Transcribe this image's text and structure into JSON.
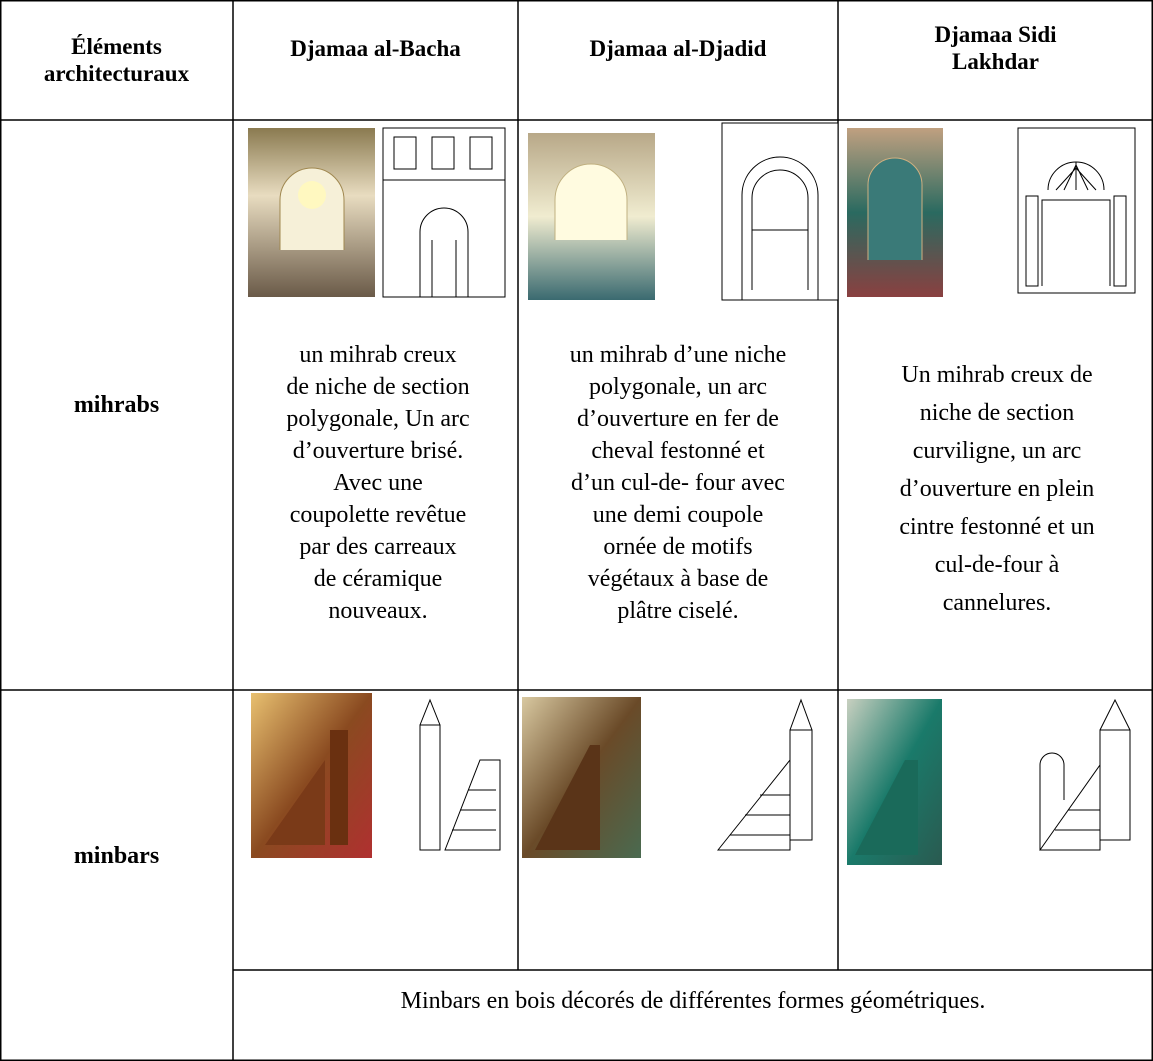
{
  "table": {
    "header": [
      [
        "Éléments",
        "architecturaux"
      ],
      [
        "Djamaa al-Bacha"
      ],
      [
        "Djamaa al-Djadid"
      ],
      [
        "Djamaa Sidi",
        "Lakhdar"
      ]
    ],
    "rows": [
      {
        "label": "mihrabs",
        "cells": [
          [
            "un mihrab creux",
            "de niche de section",
            "polygonale, Un arc",
            "d’ouverture brisé.",
            "Avec une",
            "coupolette revêtue",
            "par des carreaux",
            "de céramique",
            "nouveaux."
          ],
          [
            "un mihrab d’une niche",
            "polygonale, un arc",
            "d’ouverture en fer de",
            "cheval festonné et",
            "d’un cul-de- four avec",
            "une demi coupole",
            "ornée de motifs",
            "végétaux à base de",
            "plâtre ciselé."
          ],
          [
            "Un mihrab creux de",
            "niche de section",
            "curviligne, un arc",
            "d’ouverture en plein",
            "cintre festonné et un",
            "cul-de-four à",
            "cannelures."
          ]
        ]
      },
      {
        "label": "minbars",
        "note": "Minbars en bois décorés de différentes formes géométriques."
      }
    ]
  }
}
